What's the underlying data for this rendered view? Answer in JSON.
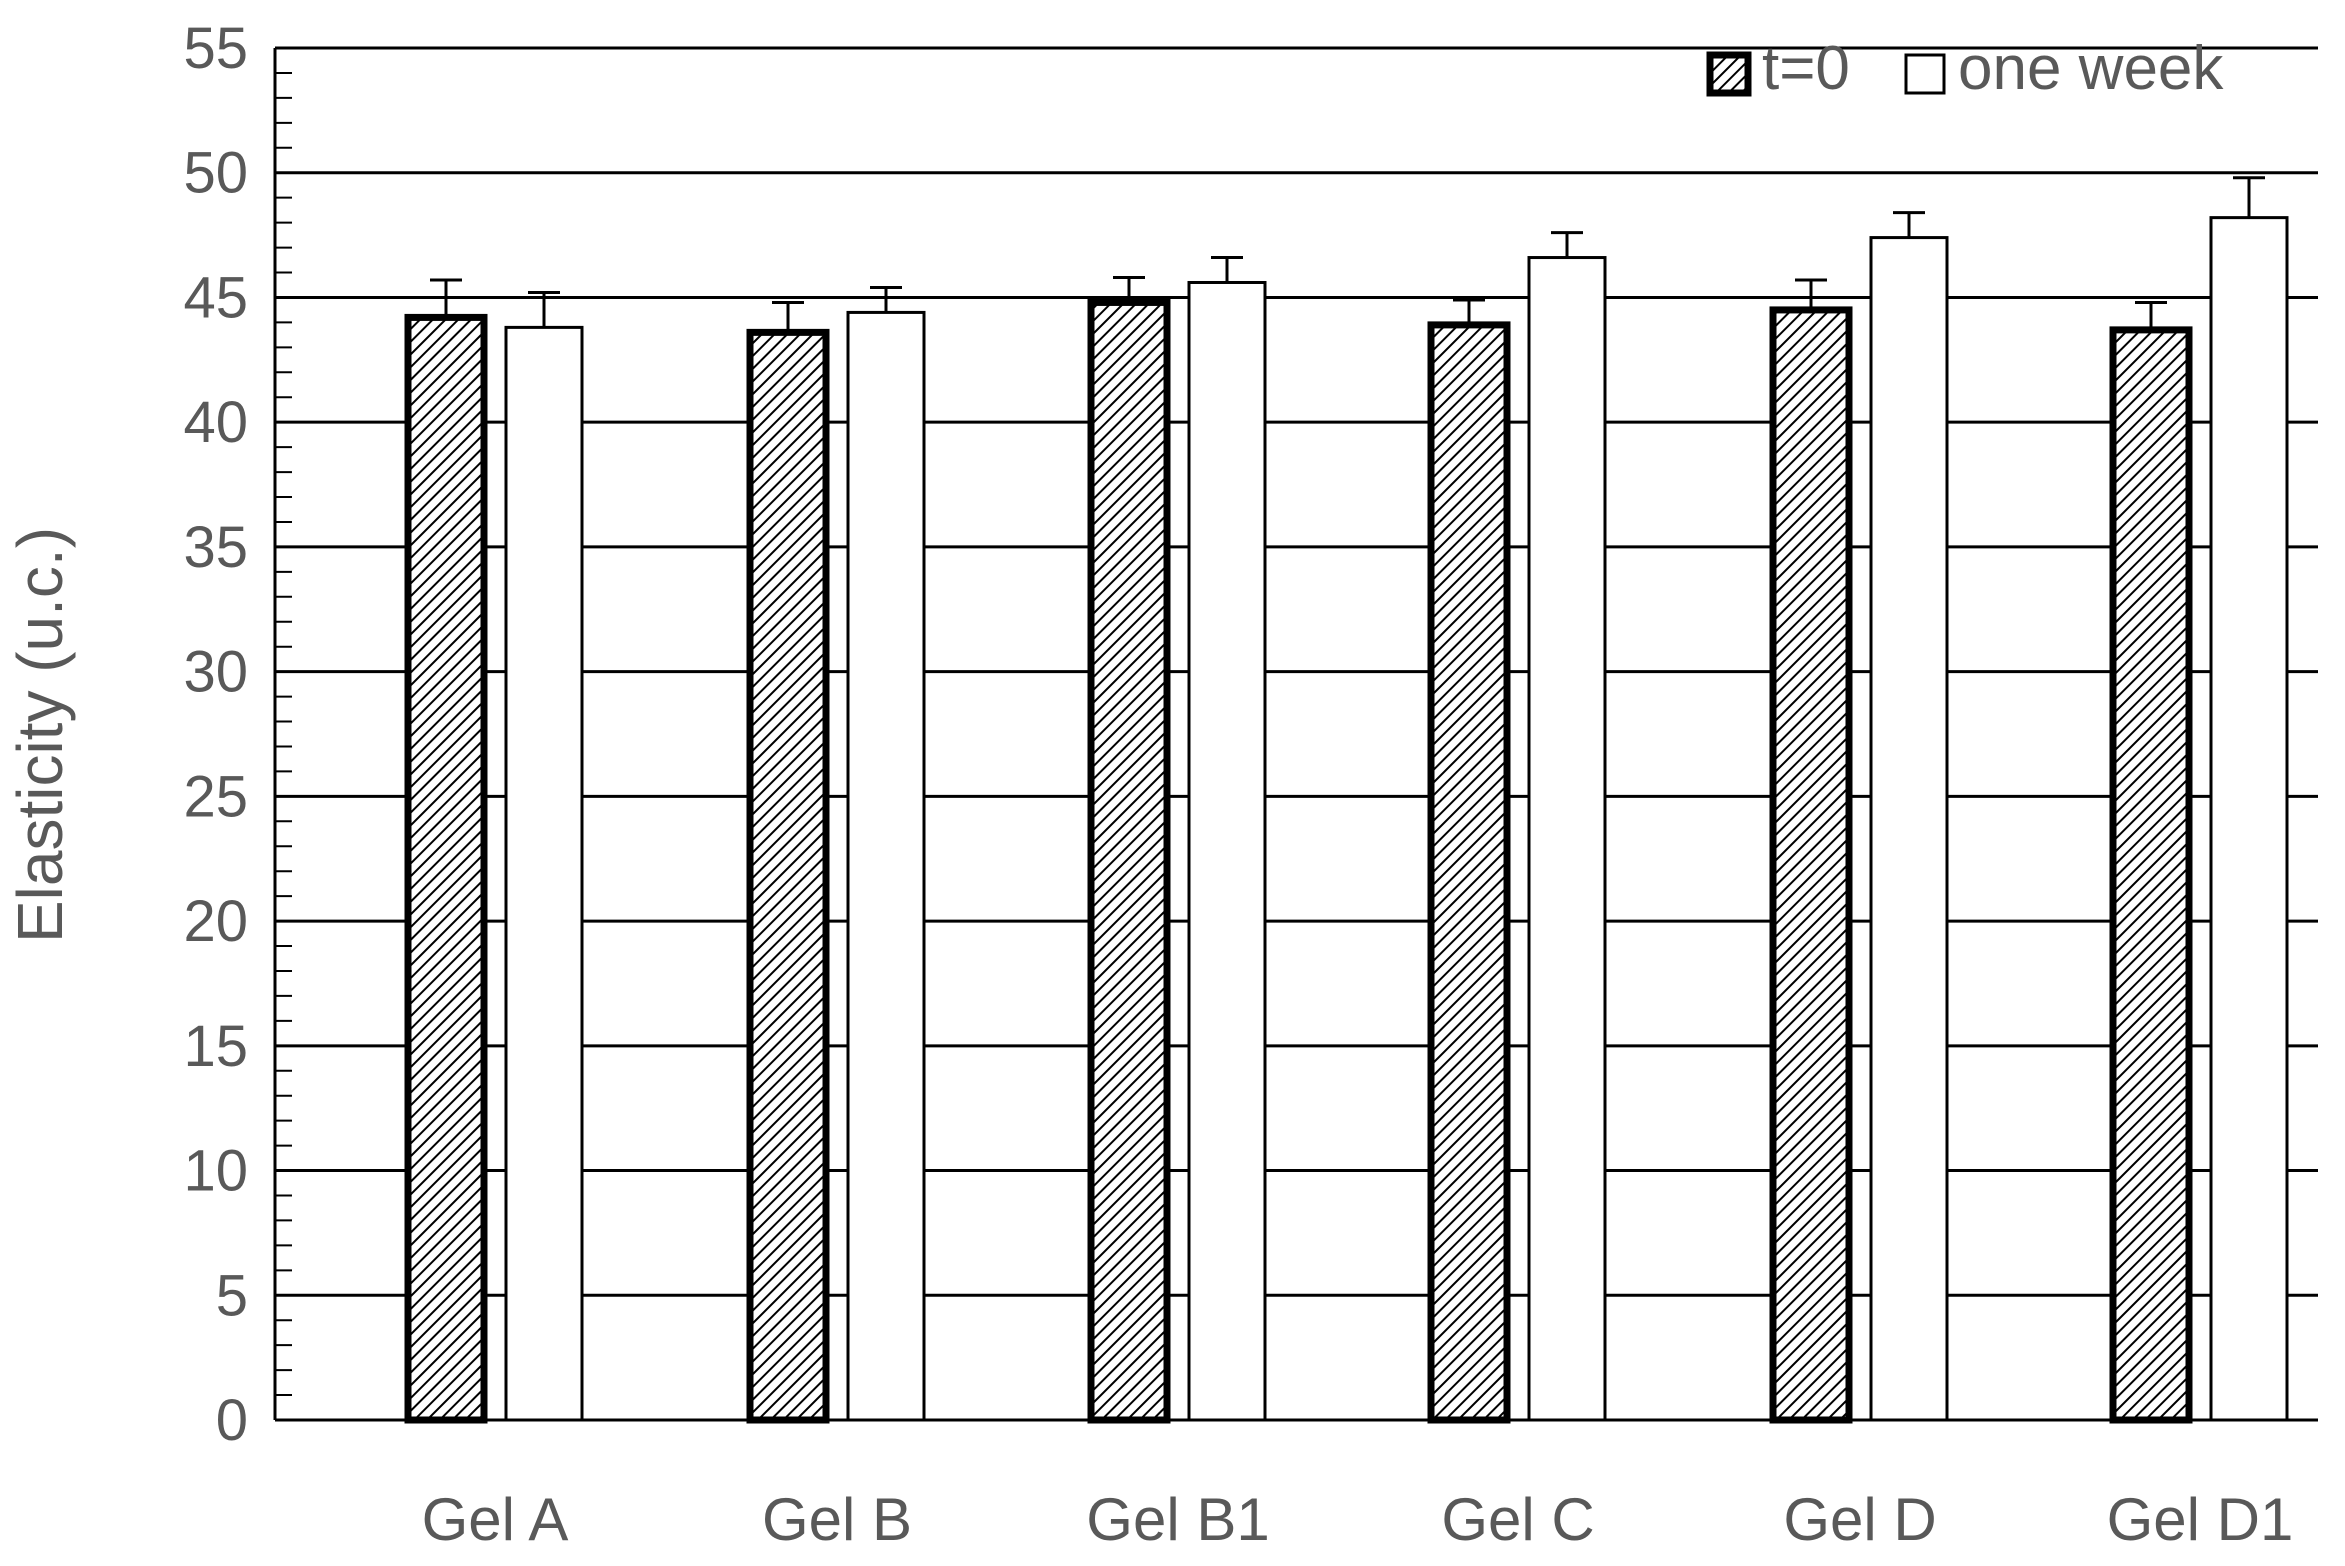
{
  "chart_data": {
    "type": "bar",
    "title": "",
    "xlabel": "",
    "ylabel": "Elasticity (u.c.)",
    "ylim": [
      0,
      55
    ],
    "ytick_step": 5,
    "grid": true,
    "legend_position": "top-right",
    "categories": [
      "Gel A",
      "Gel B",
      "Gel B1",
      "Gel C",
      "Gel D",
      "Gel D1"
    ],
    "series": [
      {
        "name": "t=0",
        "pattern": "diagonal-hatch",
        "values": [
          44.2,
          43.6,
          44.8,
          43.9,
          44.5,
          43.7
        ],
        "errors": [
          1.5,
          1.2,
          1.0,
          1.0,
          1.2,
          1.1
        ]
      },
      {
        "name": "one week",
        "pattern": "none",
        "values": [
          43.8,
          44.4,
          45.6,
          46.6,
          47.4,
          48.2
        ],
        "errors": [
          1.4,
          1.0,
          1.0,
          1.0,
          1.0,
          1.6
        ]
      }
    ],
    "colors": {
      "text": "#595959",
      "axis": "#000000",
      "grid": "#000000",
      "bar_fill": "#ffffff",
      "bar_edge": "#000000"
    }
  }
}
